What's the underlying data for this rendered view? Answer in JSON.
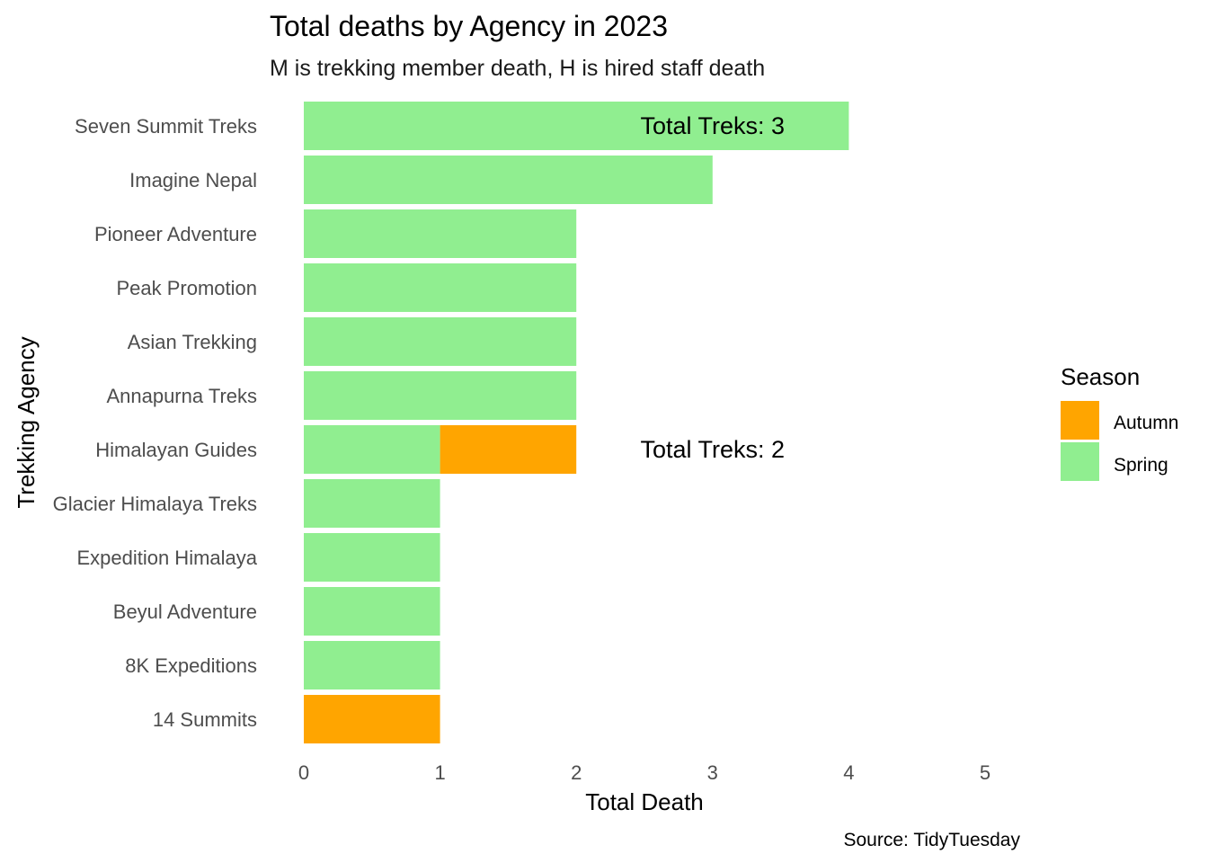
{
  "chart_data": {
    "type": "bar",
    "orientation": "horizontal",
    "stacked": true,
    "title": "Total deaths by Agency in 2023",
    "subtitle": "M is trekking member death, H is hired staff death",
    "xlabel": "Total Death",
    "ylabel": "Trekking Agency",
    "xlim": [
      0,
      5
    ],
    "xticks": [
      "0",
      "1",
      "2",
      "3",
      "4",
      "5"
    ],
    "grid": false,
    "categories": [
      "Seven Summit Treks",
      "Imagine Nepal",
      "Pioneer Adventure",
      "Peak Promotion",
      "Asian Trekking",
      "Annapurna Treks",
      "Himalayan Guides",
      "Glacier Himalaya Treks",
      "Expedition Himalaya",
      "Beyul Adventure",
      "8K Expeditions",
      "14 Summits"
    ],
    "series": [
      {
        "name": "Spring",
        "color": "#90EE90",
        "values": [
          4,
          3,
          2,
          2,
          2,
          2,
          1,
          1,
          1,
          1,
          1,
          0
        ]
      },
      {
        "name": "Autumn",
        "color": "#FFA500",
        "values": [
          0,
          0,
          0,
          0,
          0,
          0,
          1,
          0,
          0,
          0,
          0,
          1
        ]
      }
    ],
    "annotations": [
      {
        "text": "Total Treks: 3",
        "x": 3,
        "category": "Seven Summit Treks"
      },
      {
        "text": "Total Treks: 2",
        "x": 3,
        "category": "Himalayan Guides"
      }
    ],
    "legend": {
      "title": "Season",
      "position": "right",
      "items": [
        {
          "label": "Autumn",
          "color": "#FFA500"
        },
        {
          "label": "Spring",
          "color": "#90EE90"
        }
      ]
    },
    "caption": "Source: TidyTuesday"
  }
}
